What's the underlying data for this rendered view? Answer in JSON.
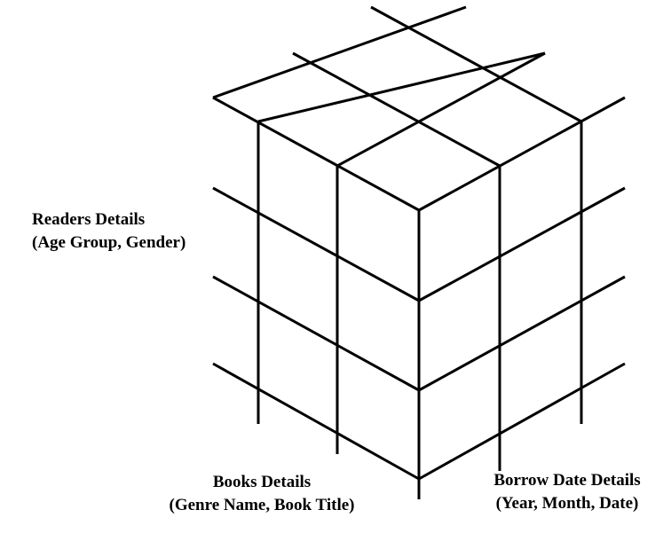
{
  "labels": {
    "readers": {
      "line1": "Readers  Details",
      "line2": "(Age Group, Gender)"
    },
    "books": {
      "line1": "Books Details",
      "line2": "(Genre Name, Book Title)"
    },
    "borrow": {
      "line1": "Borrow Date Details",
      "line2": "(Year, Month, Date)"
    }
  },
  "colors": {
    "stroke": "#000000",
    "background": "#ffffff"
  }
}
